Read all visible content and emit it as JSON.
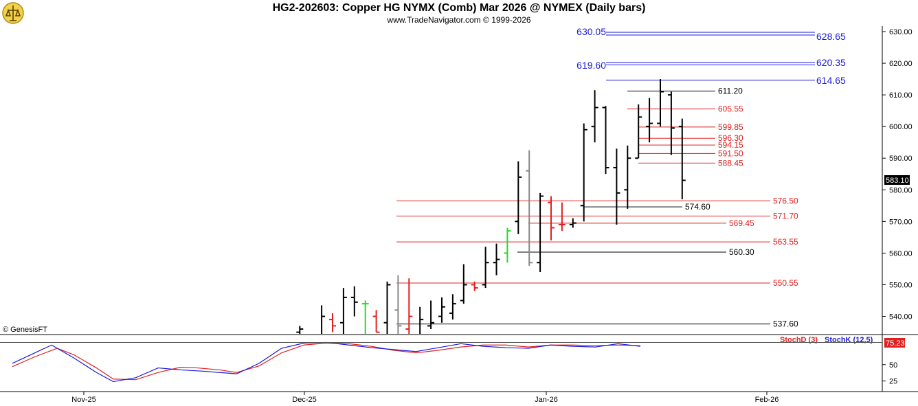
{
  "header": {
    "title": "HG2-202603:  Copper HG NYMX (Comb) Mar 2026 @ NYMEX  (Daily bars)",
    "subtitle": "www.TradeNavigator.com © 1999-2026",
    "copyright": "© GenesisFT"
  },
  "colors": {
    "grid": "#c8c8c8",
    "blue": "#1a1adc",
    "red": "#e02020",
    "black": "#000000",
    "green": "#22dd22",
    "gray": "#888888"
  },
  "chart_data": [
    {
      "type": "ohlc",
      "title": "HG2-202603:  Copper HG NYMX (Comb) Mar 2026 @ NYMEX  (Daily bars)",
      "ylim": [
        532,
        634
      ],
      "y_ticks": [
        "630.00",
        "620.00",
        "610.00",
        "600.00",
        "590.00",
        "580.00",
        "570.00",
        "560.00",
        "550.00",
        "540.00"
      ],
      "y_tick_values": [
        630,
        620,
        610,
        600,
        590,
        580,
        570,
        560,
        550,
        540
      ],
      "x_ticks": [
        "Nov-25",
        "Dec-25",
        "Jan-26",
        "Feb-26"
      ],
      "last_price": "583.10",
      "bars": [
        {
          "day": 27,
          "open": 535,
          "high": 537,
          "low": 532,
          "close": 536,
          "color": "black"
        },
        {
          "day": 29,
          "open": 534,
          "high": 543.5,
          "low": 532,
          "close": 540,
          "color": "black"
        },
        {
          "day": 30,
          "open": 539,
          "high": 541,
          "low": 535,
          "close": 537,
          "color": "red"
        },
        {
          "day": 31,
          "open": 538,
          "high": 549,
          "low": 534,
          "close": 546,
          "color": "black"
        },
        {
          "day": 32,
          "open": 546,
          "high": 549.5,
          "low": 540,
          "close": 544.5,
          "color": "black"
        },
        {
          "day": 33,
          "open": 544,
          "high": 545,
          "low": 533,
          "close": 544,
          "color": "green"
        },
        {
          "day": 34,
          "open": 540,
          "high": 542,
          "low": 535,
          "close": 535,
          "color": "red"
        },
        {
          "day": 35,
          "open": 538,
          "high": 551,
          "low": 534,
          "close": 550,
          "color": "black"
        },
        {
          "day": 36,
          "open": 542,
          "high": 553,
          "low": 533,
          "close": 537,
          "color": "gray"
        },
        {
          "day": 37,
          "open": 536,
          "high": 552,
          "low": 533,
          "close": 540,
          "color": "red"
        },
        {
          "day": 38,
          "open": 534,
          "high": 543,
          "low": 533,
          "close": 539,
          "color": "black"
        },
        {
          "day": 39,
          "open": 537,
          "high": 545,
          "low": 536,
          "close": 538,
          "color": "black"
        },
        {
          "day": 40,
          "open": 540,
          "high": 546,
          "low": 538,
          "close": 543,
          "color": "black"
        },
        {
          "day": 41,
          "open": 541,
          "high": 547,
          "low": 539,
          "close": 544,
          "color": "black"
        },
        {
          "day": 42,
          "open": 545,
          "high": 556.5,
          "low": 544,
          "close": 550,
          "color": "black"
        },
        {
          "day": 43,
          "open": 550,
          "high": 551,
          "low": 548,
          "close": 549,
          "color": "red"
        },
        {
          "day": 44,
          "open": 550,
          "high": 562,
          "low": 549,
          "close": 557,
          "color": "black"
        },
        {
          "day": 45,
          "open": 557,
          "high": 563,
          "low": 553,
          "close": 558,
          "color": "black"
        },
        {
          "day": 46,
          "open": 560,
          "high": 568,
          "low": 557,
          "close": 567,
          "color": "green"
        },
        {
          "day": 47,
          "open": 570,
          "high": 589,
          "low": 566,
          "close": 584,
          "color": "black"
        },
        {
          "day": 48,
          "open": 586,
          "high": 592.5,
          "low": 556,
          "close": 557,
          "color": "gray"
        },
        {
          "day": 49,
          "open": 557,
          "high": 579,
          "low": 554,
          "close": 578,
          "color": "black"
        },
        {
          "day": 50,
          "open": 576,
          "high": 578,
          "low": 564,
          "close": 568,
          "color": "red"
        },
        {
          "day": 51,
          "open": 569,
          "high": 576,
          "low": 567,
          "close": 569,
          "color": "red"
        },
        {
          "day": 52,
          "open": 569,
          "high": 571,
          "low": 568,
          "close": 569.5,
          "color": "black"
        },
        {
          "day": 53,
          "open": 575,
          "high": 601,
          "low": 570,
          "close": 599,
          "color": "black"
        },
        {
          "day": 54,
          "open": 600,
          "high": 611.5,
          "low": 595,
          "close": 606,
          "color": "black"
        },
        {
          "day": 55,
          "open": 606,
          "high": 606.5,
          "low": 585,
          "close": 587,
          "color": "black"
        },
        {
          "day": 56,
          "open": 587,
          "high": 593,
          "low": 569,
          "close": 579,
          "color": "black"
        },
        {
          "day": 57,
          "open": 580,
          "high": 594,
          "low": 574,
          "close": 590,
          "color": "black"
        },
        {
          "day": 58,
          "open": 590,
          "high": 607,
          "low": 590,
          "close": 603,
          "color": "black"
        },
        {
          "day": 59,
          "open": 600,
          "high": 609,
          "low": 595,
          "close": 601,
          "color": "black"
        },
        {
          "day": 60,
          "open": 601,
          "high": 615,
          "low": 600,
          "close": 611,
          "color": "black"
        },
        {
          "day": 61,
          "open": 610,
          "high": 611,
          "low": 591,
          "close": 599.5,
          "color": "black"
        },
        {
          "day": 62,
          "open": 600,
          "high": 602.5,
          "low": 577,
          "close": 583,
          "color": "black"
        }
      ]
    },
    {
      "type": "line",
      "title": "",
      "legend": [
        "StochD (3)",
        "StochK (12,5)"
      ],
      "y_ticks": [
        "50",
        "25"
      ],
      "y_tick_values": [
        50,
        25
      ],
      "last_value": "75.23",
      "series": [
        {
          "name": "StochD (3)",
          "color": "red",
          "values": [
            [
              0,
              47
            ],
            [
              4,
              62
            ],
            [
              8,
              75
            ],
            [
              11,
              65
            ],
            [
              15,
              45
            ],
            [
              18,
              28
            ],
            [
              22,
              27
            ],
            [
              26,
              38
            ],
            [
              30,
              46
            ],
            [
              33,
              45
            ],
            [
              37,
              42
            ],
            [
              40,
              38
            ],
            [
              44,
              48
            ],
            [
              48,
              68
            ],
            [
              52,
              80
            ],
            [
              56,
              83
            ],
            [
              60,
              82
            ],
            [
              64,
              78
            ],
            [
              68,
              72
            ],
            [
              72,
              68
            ],
            [
              76,
              72
            ],
            [
              80,
              77
            ],
            [
              84,
              80
            ],
            [
              88,
              80
            ],
            [
              92,
              77
            ],
            [
              96,
              80
            ],
            [
              100,
              80
            ],
            [
              104,
              79
            ],
            [
              108,
              80
            ],
            [
              112,
              79
            ]
          ]
        },
        {
          "name": "StochK (12,5)",
          "color": "blue",
          "values": [
            [
              0,
              52
            ],
            [
              4,
              68
            ],
            [
              7,
              80
            ],
            [
              11,
              60
            ],
            [
              15,
              38
            ],
            [
              18,
              24
            ],
            [
              22,
              30
            ],
            [
              26,
              45
            ],
            [
              30,
              42
            ],
            [
              34,
              40
            ],
            [
              37,
              38
            ],
            [
              40,
              36
            ],
            [
              44,
              52
            ],
            [
              48,
              75
            ],
            [
              52,
              83
            ],
            [
              56,
              84
            ],
            [
              60,
              80
            ],
            [
              64,
              76
            ],
            [
              68,
              73
            ],
            [
              72,
              70
            ],
            [
              76,
              76
            ],
            [
              80,
              82
            ],
            [
              84,
              78
            ],
            [
              88,
              76
            ],
            [
              92,
              75
            ],
            [
              96,
              80
            ],
            [
              100,
              78
            ],
            [
              104,
              77
            ],
            [
              108,
              82
            ],
            [
              112,
              78
            ]
          ]
        }
      ]
    }
  ],
  "levels": [
    {
      "label": "630.05",
      "value": 630.05,
      "color": "blue",
      "side": "left"
    },
    {
      "label": "628.65",
      "value": 628.65,
      "color": "blue",
      "side": "right"
    },
    {
      "label": "619.60",
      "value": 619.6,
      "color": "blue",
      "side": "left"
    },
    {
      "label": "620.35",
      "value": 620.35,
      "color": "blue",
      "side": "right"
    },
    {
      "label": "614.65",
      "value": 614.65,
      "color": "blue",
      "side": "right"
    },
    {
      "label": "611.20",
      "value": 611.2,
      "color": "black",
      "side": "right"
    },
    {
      "label": "605.55",
      "value": 605.55,
      "color": "red",
      "side": "right"
    },
    {
      "label": "599.85",
      "value": 599.85,
      "color": "red",
      "side": "right"
    },
    {
      "label": "596.30",
      "value": 596.3,
      "color": "red",
      "side": "right"
    },
    {
      "label": "594.15",
      "value": 594.15,
      "color": "red",
      "side": "right"
    },
    {
      "label": "591.50",
      "value": 591.5,
      "color": "red",
      "side": "right"
    },
    {
      "label": "588.45",
      "value": 588.45,
      "color": "red",
      "side": "right"
    },
    {
      "label": "576.50",
      "value": 576.5,
      "color": "red",
      "side": "right"
    },
    {
      "label": "574.60",
      "value": 574.6,
      "color": "black",
      "side": "right"
    },
    {
      "label": "571.70",
      "value": 571.7,
      "color": "red",
      "side": "right"
    },
    {
      "label": "569.45",
      "value": 569.45,
      "color": "red",
      "side": "right"
    },
    {
      "label": "563.55",
      "value": 563.55,
      "color": "red",
      "side": "right"
    },
    {
      "label": "560.30",
      "value": 560.3,
      "color": "black",
      "side": "right"
    },
    {
      "label": "550.55",
      "value": 550.55,
      "color": "red",
      "side": "right"
    },
    {
      "label": "537.60",
      "value": 537.6,
      "color": "black",
      "side": "right"
    }
  ]
}
